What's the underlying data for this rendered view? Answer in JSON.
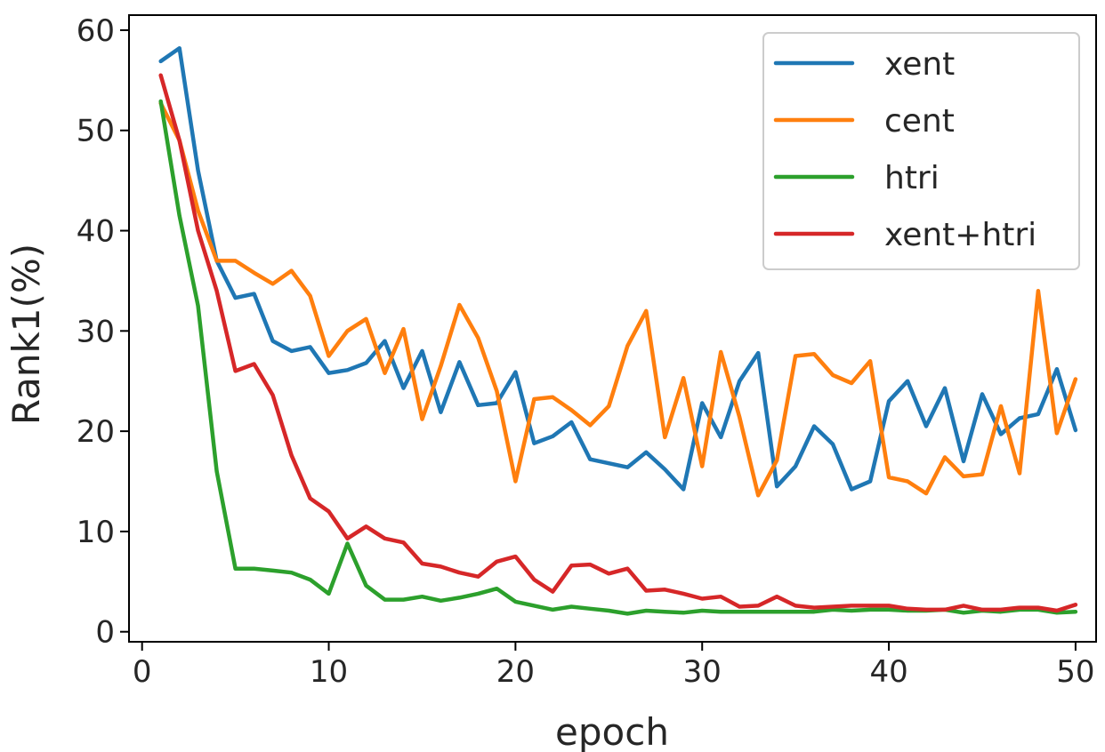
{
  "chart_data": {
    "type": "line",
    "title": "",
    "xlabel": "epoch",
    "ylabel": "Rank1(%)",
    "xlim": [
      -0.7,
      51.1
    ],
    "ylim": [
      -1.0,
      61.5
    ],
    "xticks": [
      0,
      10,
      20,
      30,
      40,
      50
    ],
    "yticks": [
      0,
      10,
      20,
      30,
      40,
      50,
      60
    ],
    "grid": false,
    "legend_position": "top-right",
    "x": [
      1,
      2,
      3,
      4,
      5,
      6,
      7,
      8,
      9,
      10,
      11,
      12,
      13,
      14,
      15,
      16,
      17,
      18,
      19,
      20,
      21,
      22,
      23,
      24,
      25,
      26,
      27,
      28,
      29,
      30,
      31,
      32,
      33,
      34,
      35,
      36,
      37,
      38,
      39,
      40,
      41,
      42,
      43,
      44,
      45,
      46,
      47,
      48,
      49,
      50
    ],
    "series": [
      {
        "name": "xent",
        "color": "#1f77b4",
        "values": [
          56.9,
          58.2,
          46.0,
          37.0,
          33.3,
          33.7,
          29.0,
          28.0,
          28.4,
          25.8,
          26.1,
          26.8,
          29.0,
          24.3,
          28.0,
          21.9,
          26.9,
          22.6,
          22.8,
          25.9,
          18.8,
          19.5,
          20.9,
          17.2,
          16.8,
          16.4,
          17.9,
          16.2,
          14.2,
          22.8,
          19.4,
          25.0,
          27.8,
          14.5,
          16.5,
          20.5,
          18.7,
          14.2,
          15.0,
          23.0,
          25.0,
          20.5,
          24.3,
          17.0,
          23.7,
          19.7,
          21.3,
          21.7,
          26.2,
          20.1
        ]
      },
      {
        "name": "cent",
        "color": "#ff7f0e",
        "values": [
          52.7,
          49.0,
          42.0,
          37.0,
          37.0,
          35.8,
          34.7,
          36.0,
          33.5,
          27.5,
          30.0,
          31.2,
          25.8,
          30.2,
          21.2,
          26.5,
          32.6,
          29.3,
          24.0,
          15.0,
          23.2,
          23.4,
          22.1,
          20.6,
          22.5,
          28.5,
          32.0,
          19.4,
          25.3,
          16.5,
          27.9,
          21.4,
          13.6,
          17.1,
          27.5,
          27.7,
          25.6,
          24.8,
          27.0,
          15.4,
          15.0,
          13.8,
          17.4,
          15.5,
          15.7,
          22.5,
          15.8,
          34.0,
          19.8,
          25.2
        ]
      },
      {
        "name": "htri",
        "color": "#2ca02c",
        "values": [
          52.9,
          41.5,
          32.5,
          16.0,
          6.3,
          6.3,
          6.1,
          5.9,
          5.2,
          3.8,
          8.8,
          4.6,
          3.2,
          3.2,
          3.5,
          3.1,
          3.4,
          3.8,
          4.3,
          3.0,
          2.6,
          2.2,
          2.5,
          2.3,
          2.1,
          1.8,
          2.1,
          2.0,
          1.9,
          2.1,
          2.0,
          2.0,
          2.0,
          2.0,
          2.0,
          2.0,
          2.2,
          2.1,
          2.2,
          2.2,
          2.1,
          2.1,
          2.2,
          1.9,
          2.1,
          2.0,
          2.2,
          2.2,
          1.9,
          2.0
        ]
      },
      {
        "name": "xent+htri",
        "color": "#d62728",
        "values": [
          55.5,
          49.0,
          40.0,
          34.0,
          26.0,
          26.7,
          23.6,
          17.6,
          13.3,
          12.0,
          9.3,
          10.5,
          9.3,
          8.9,
          6.8,
          6.5,
          5.9,
          5.5,
          7.0,
          7.5,
          5.2,
          4.0,
          6.6,
          6.7,
          5.8,
          6.3,
          4.1,
          4.2,
          3.8,
          3.3,
          3.5,
          2.5,
          2.6,
          3.5,
          2.6,
          2.4,
          2.5,
          2.6,
          2.6,
          2.6,
          2.3,
          2.2,
          2.2,
          2.6,
          2.2,
          2.2,
          2.4,
          2.4,
          2.1,
          2.7
        ]
      }
    ]
  }
}
